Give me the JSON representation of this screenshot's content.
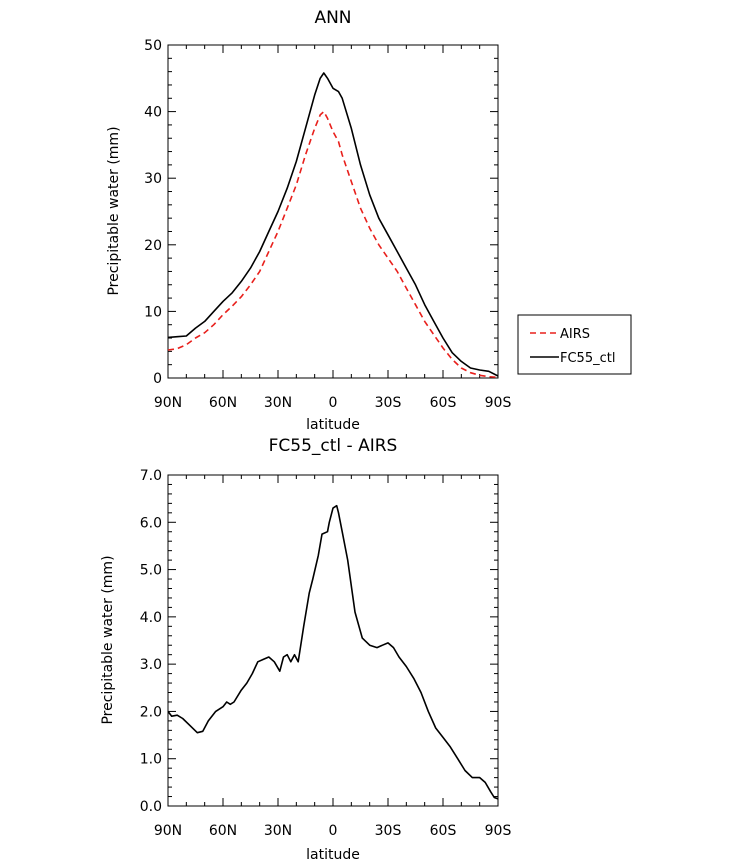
{
  "chart_data": [
    {
      "type": "line",
      "title": "ANN",
      "xlabel": "latitude",
      "ylabel": "Precipitable water (mm)",
      "xlim": [
        90,
        -90
      ],
      "ylim": [
        0,
        50
      ],
      "yticks": [
        0,
        10,
        20,
        30,
        40,
        50
      ],
      "ytick_labels": [
        "0",
        "10",
        "20",
        "30",
        "40",
        "50"
      ],
      "xticks": [
        90,
        60,
        30,
        0,
        -30,
        -60,
        -90
      ],
      "xtick_labels": [
        "90N",
        "60N",
        "30N",
        "0",
        "30S",
        "60S",
        "90S"
      ],
      "legend_position": "right",
      "series": [
        {
          "name": "AIRS",
          "color": "#e8201c",
          "dash": "dashed",
          "x": [
            90,
            85,
            80,
            75,
            70,
            65,
            60,
            55,
            50,
            45,
            40,
            35,
            30,
            25,
            20,
            15,
            10,
            7,
            5,
            3,
            0,
            -3,
            -5,
            -10,
            -15,
            -20,
            -25,
            -30,
            -35,
            -40,
            -45,
            -50,
            -55,
            -60,
            -65,
            -70,
            -75,
            -80,
            -85,
            -90
          ],
          "y": [
            4.2,
            4.4,
            5.0,
            6.0,
            6.8,
            8.0,
            9.5,
            10.8,
            12.2,
            14.0,
            16.0,
            19.0,
            22.0,
            25.5,
            29.0,
            33.5,
            37.5,
            39.5,
            40.0,
            39.0,
            37.0,
            35.5,
            33.5,
            29.5,
            25.5,
            22.5,
            20.0,
            18.0,
            16.0,
            13.5,
            11.0,
            8.5,
            6.5,
            4.5,
            2.8,
            1.5,
            0.8,
            0.4,
            0.2,
            0.1
          ]
        },
        {
          "name": "FC55_ctl",
          "color": "#000000",
          "dash": "solid",
          "x": [
            90,
            85,
            80,
            75,
            70,
            65,
            60,
            55,
            50,
            45,
            40,
            35,
            30,
            25,
            20,
            15,
            10,
            7,
            5,
            3,
            0,
            -3,
            -5,
            -10,
            -15,
            -20,
            -25,
            -30,
            -35,
            -40,
            -45,
            -50,
            -55,
            -60,
            -65,
            -70,
            -75,
            -80,
            -85,
            -90
          ],
          "y": [
            6.1,
            6.2,
            6.3,
            7.5,
            8.5,
            10.0,
            11.5,
            12.8,
            14.5,
            16.5,
            19.0,
            22.0,
            25.0,
            28.5,
            32.5,
            37.5,
            42.5,
            45.0,
            45.8,
            45.0,
            43.5,
            43.0,
            42.0,
            37.5,
            32.0,
            27.5,
            24.0,
            21.5,
            19.0,
            16.5,
            14.0,
            11.0,
            8.5,
            6.0,
            3.8,
            2.5,
            1.5,
            1.2,
            1.0,
            0.3
          ]
        }
      ]
    },
    {
      "type": "line",
      "title": "FC55_ctl - AIRS",
      "xlabel": "latitude",
      "ylabel": "Precipitable water (mm)",
      "xlim": [
        90,
        -90
      ],
      "ylim": [
        0,
        7
      ],
      "yticks": [
        0,
        1,
        2,
        3,
        4,
        5,
        6,
        7
      ],
      "ytick_labels": [
        "0.0",
        "1.0",
        "2.0",
        "3.0",
        "4.0",
        "5.0",
        "6.0",
        "7.0"
      ],
      "xticks": [
        90,
        60,
        30,
        0,
        -30,
        -60,
        -90
      ],
      "xtick_labels": [
        "90N",
        "60N",
        "30N",
        "0",
        "30S",
        "60S",
        "90S"
      ],
      "series": [
        {
          "color": "#000000",
          "dash": "solid",
          "x": [
            90,
            88,
            85,
            82,
            78,
            74,
            71,
            68,
            64,
            60,
            58,
            56,
            54,
            50,
            47,
            44,
            41,
            38,
            35,
            32,
            29,
            27,
            25,
            23,
            21,
            19,
            16,
            13,
            11,
            8,
            6,
            3,
            2,
            0,
            -2,
            -3,
            -5,
            -8,
            -12,
            -16,
            -20,
            -24,
            -27,
            -30,
            -33,
            -36,
            -40,
            -44,
            -48,
            -52,
            -56,
            -60,
            -64,
            -68,
            -72,
            -76,
            -80,
            -83,
            -86,
            -88,
            -90
          ],
          "y": [
            2.0,
            1.9,
            1.92,
            1.85,
            1.7,
            1.55,
            1.58,
            1.8,
            2.0,
            2.1,
            2.2,
            2.15,
            2.2,
            2.45,
            2.6,
            2.8,
            3.05,
            3.1,
            3.15,
            3.05,
            2.85,
            3.15,
            3.2,
            3.05,
            3.2,
            3.05,
            3.8,
            4.5,
            4.8,
            5.3,
            5.75,
            5.8,
            6.0,
            6.3,
            6.35,
            6.2,
            5.8,
            5.2,
            4.1,
            3.55,
            3.4,
            3.35,
            3.4,
            3.45,
            3.35,
            3.15,
            2.95,
            2.7,
            2.4,
            2.0,
            1.65,
            1.45,
            1.25,
            1.0,
            0.75,
            0.6,
            0.6,
            0.5,
            0.3,
            0.18,
            0.15
          ]
        }
      ]
    }
  ]
}
